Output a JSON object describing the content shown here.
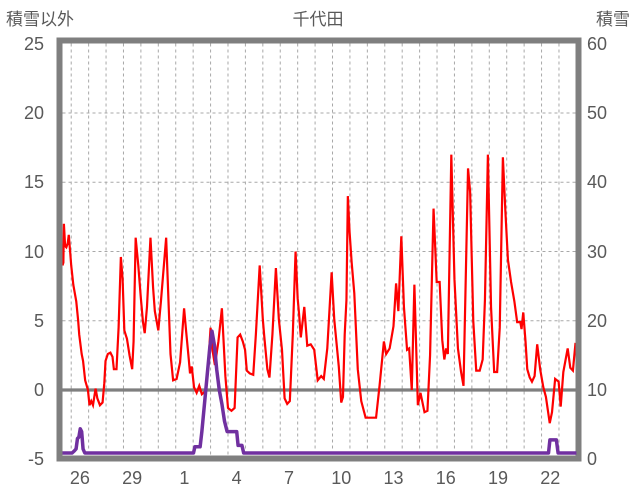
{
  "chart": {
    "title": "千代田",
    "left_axis_title": "積雪以外",
    "right_axis_title": "積雪",
    "colors": {
      "temperature_line": "#fe0000",
      "snow_line": "#7030a0",
      "border": "#7f7f7f",
      "zero_line": "#7f7f7f",
      "gridline": "#a8a8a8",
      "text": "#595959",
      "background": "#ffffff"
    }
  },
  "chart_data": {
    "type": "line",
    "title": "千代田",
    "x_axis": {
      "tick_labels": [
        "26",
        "29",
        "1",
        "4",
        "7",
        "10",
        "13",
        "16",
        "19",
        "22"
      ],
      "tick_positions_days": [
        1,
        4,
        7,
        10,
        13,
        16,
        19,
        22,
        25,
        28
      ],
      "domain_days": [
        0,
        29.5
      ],
      "gridlines_days": {
        "start": 0.5,
        "end": 28.5,
        "step": 1
      },
      "grid": "dashed-vertical-daily"
    },
    "y_axis_left": {
      "title": "積雪以外",
      "range": [
        -5,
        25
      ],
      "ticks": [
        25,
        20,
        15,
        10,
        5,
        0,
        -5
      ],
      "gridline_values": [
        20,
        15,
        10,
        5
      ],
      "zero_line_value": 0
    },
    "y_axis_right": {
      "title": "積雪",
      "range": [
        0,
        60
      ],
      "ticks": [
        60,
        50,
        40,
        30,
        20,
        10,
        0
      ]
    },
    "legend": "none",
    "series": [
      {
        "name": "積雪以外",
        "axis": "left",
        "color": "#fe0000",
        "points": [
          [
            0.0,
            9.0
          ],
          [
            0.05,
            9.2
          ],
          [
            0.08,
            12.0
          ],
          [
            0.15,
            10.4
          ],
          [
            0.22,
            10.3
          ],
          [
            0.3,
            10.6
          ],
          [
            0.36,
            11.2
          ],
          [
            0.45,
            9.8
          ],
          [
            0.5,
            9.0
          ],
          [
            0.62,
            7.6
          ],
          [
            0.79,
            6.4
          ],
          [
            0.9,
            5.0
          ],
          [
            0.96,
            4.0
          ],
          [
            1.1,
            2.6
          ],
          [
            1.18,
            2.1
          ],
          [
            1.3,
            0.7
          ],
          [
            1.46,
            0.0
          ],
          [
            1.55,
            -1.1
          ],
          [
            1.65,
            -0.8
          ],
          [
            1.75,
            -1.1
          ],
          [
            1.9,
            0.1
          ],
          [
            2.0,
            -0.6
          ],
          [
            2.15,
            -1.1
          ],
          [
            2.3,
            -0.9
          ],
          [
            2.4,
            0.5
          ],
          [
            2.47,
            2.1
          ],
          [
            2.6,
            2.6
          ],
          [
            2.75,
            2.7
          ],
          [
            2.87,
            2.4
          ],
          [
            2.95,
            1.5
          ],
          [
            3.1,
            1.5
          ],
          [
            3.22,
            4.5
          ],
          [
            3.35,
            9.6
          ],
          [
            3.45,
            8.0
          ],
          [
            3.55,
            4.3
          ],
          [
            3.7,
            3.7
          ],
          [
            3.85,
            2.5
          ],
          [
            4.0,
            1.5
          ],
          [
            4.08,
            3.5
          ],
          [
            4.2,
            11.0
          ],
          [
            4.35,
            9.0
          ],
          [
            4.5,
            6.6
          ],
          [
            4.62,
            4.9
          ],
          [
            4.72,
            4.1
          ],
          [
            4.85,
            6.0
          ],
          [
            5.05,
            11.0
          ],
          [
            5.2,
            7.4
          ],
          [
            5.3,
            5.7
          ],
          [
            5.5,
            4.3
          ],
          [
            5.65,
            6.4
          ],
          [
            5.95,
            11.0
          ],
          [
            6.1,
            5.9
          ],
          [
            6.2,
            2.6
          ],
          [
            6.35,
            0.7
          ],
          [
            6.55,
            0.8
          ],
          [
            6.75,
            2.0
          ],
          [
            6.98,
            5.9
          ],
          [
            7.1,
            4.2
          ],
          [
            7.25,
            2.2
          ],
          [
            7.32,
            1.2
          ],
          [
            7.42,
            1.7
          ],
          [
            7.55,
            0.2
          ],
          [
            7.7,
            -0.2
          ],
          [
            7.85,
            0.3
          ],
          [
            8.0,
            -0.3
          ],
          [
            8.2,
            -0.1
          ],
          [
            8.35,
            1.5
          ],
          [
            8.5,
            4.5
          ],
          [
            8.62,
            2.8
          ],
          [
            8.75,
            1.8
          ],
          [
            8.95,
            3.5
          ],
          [
            9.15,
            5.9
          ],
          [
            9.35,
            1.0
          ],
          [
            9.5,
            -1.3
          ],
          [
            9.7,
            -1.5
          ],
          [
            9.88,
            -1.3
          ],
          [
            10.05,
            3.8
          ],
          [
            10.2,
            4.0
          ],
          [
            10.35,
            3.5
          ],
          [
            10.48,
            2.9
          ],
          [
            10.58,
            1.4
          ],
          [
            10.75,
            1.2
          ],
          [
            10.95,
            1.1
          ],
          [
            11.1,
            4.0
          ],
          [
            11.32,
            9.0
          ],
          [
            11.5,
            5.1
          ],
          [
            11.58,
            3.9
          ],
          [
            11.76,
            1.5
          ],
          [
            11.88,
            0.9
          ],
          [
            12.05,
            4.0
          ],
          [
            12.25,
            8.8
          ],
          [
            12.42,
            5.1
          ],
          [
            12.6,
            2.9
          ],
          [
            12.75,
            -0.6
          ],
          [
            12.9,
            -1.0
          ],
          [
            13.05,
            -0.8
          ],
          [
            13.22,
            4.0
          ],
          [
            13.38,
            10.0
          ],
          [
            13.5,
            6.6
          ],
          [
            13.58,
            5.5
          ],
          [
            13.68,
            3.8
          ],
          [
            13.88,
            6.0
          ],
          [
            14.05,
            3.2
          ],
          [
            14.25,
            3.3
          ],
          [
            14.45,
            2.9
          ],
          [
            14.65,
            0.7
          ],
          [
            14.85,
            1.0
          ],
          [
            15.0,
            0.8
          ],
          [
            15.2,
            3.0
          ],
          [
            15.45,
            8.5
          ],
          [
            15.6,
            5.1
          ],
          [
            15.86,
            1.7
          ],
          [
            16.0,
            -0.9
          ],
          [
            16.1,
            -0.5
          ],
          [
            16.2,
            4.0
          ],
          [
            16.3,
            6.5
          ],
          [
            16.38,
            14.0
          ],
          [
            16.48,
            11.4
          ],
          [
            16.6,
            9.2
          ],
          [
            16.75,
            7.0
          ],
          [
            16.95,
            1.5
          ],
          [
            17.15,
            -0.8
          ],
          [
            17.4,
            -2.0
          ],
          [
            17.7,
            -2.0
          ],
          [
            18.0,
            -2.0
          ],
          [
            18.2,
            0.3
          ],
          [
            18.45,
            3.5
          ],
          [
            18.58,
            2.6
          ],
          [
            18.78,
            3.0
          ],
          [
            19.0,
            4.6
          ],
          [
            19.15,
            7.7
          ],
          [
            19.28,
            5.7
          ],
          [
            19.45,
            11.1
          ],
          [
            19.6,
            6.0
          ],
          [
            19.78,
            2.9
          ],
          [
            19.9,
            3.0
          ],
          [
            20.05,
            0.0
          ],
          [
            20.2,
            7.6
          ],
          [
            20.4,
            -1.1
          ],
          [
            20.55,
            -0.2
          ],
          [
            20.78,
            -1.6
          ],
          [
            20.95,
            -1.5
          ],
          [
            21.1,
            2.5
          ],
          [
            21.3,
            13.1
          ],
          [
            21.48,
            7.8
          ],
          [
            21.65,
            7.8
          ],
          [
            21.8,
            3.6
          ],
          [
            21.92,
            2.2
          ],
          [
            22.02,
            3.0
          ],
          [
            22.12,
            2.6
          ],
          [
            22.32,
            17.0
          ],
          [
            22.5,
            8.0
          ],
          [
            22.7,
            3.0
          ],
          [
            22.88,
            1.3
          ],
          [
            23.02,
            0.3
          ],
          [
            23.28,
            16.0
          ],
          [
            23.4,
            14.3
          ],
          [
            23.58,
            5.0
          ],
          [
            23.75,
            1.4
          ],
          [
            23.95,
            1.4
          ],
          [
            24.12,
            2.2
          ],
          [
            24.25,
            6.5
          ],
          [
            24.42,
            17.0
          ],
          [
            24.6,
            6.0
          ],
          [
            24.78,
            1.3
          ],
          [
            24.95,
            1.3
          ],
          [
            25.1,
            4.5
          ],
          [
            25.28,
            16.8
          ],
          [
            25.42,
            13.0
          ],
          [
            25.57,
            9.4
          ],
          [
            25.75,
            7.8
          ],
          [
            25.94,
            6.4
          ],
          [
            26.1,
            4.9
          ],
          [
            26.28,
            4.9
          ],
          [
            26.35,
            4.4
          ],
          [
            26.45,
            5.6
          ],
          [
            26.58,
            3.5
          ],
          [
            26.68,
            1.5
          ],
          [
            26.82,
            0.9
          ],
          [
            26.95,
            0.6
          ],
          [
            27.1,
            1.0
          ],
          [
            27.25,
            3.3
          ],
          [
            27.42,
            1.5
          ],
          [
            27.6,
            0.2
          ],
          [
            27.75,
            -0.5
          ],
          [
            27.97,
            -2.4
          ],
          [
            28.1,
            -1.6
          ],
          [
            28.28,
            0.8
          ],
          [
            28.48,
            0.6
          ],
          [
            28.6,
            -1.2
          ],
          [
            28.75,
            1.3
          ],
          [
            29.0,
            3.0
          ],
          [
            29.15,
            1.6
          ],
          [
            29.3,
            1.4
          ],
          [
            29.45,
            3.4
          ]
        ]
      },
      {
        "name": "積雪",
        "axis": "right",
        "color": "#7030a0",
        "points": [
          [
            0.0,
            0
          ],
          [
            0.55,
            0
          ],
          [
            0.68,
            1.2
          ],
          [
            0.78,
            1.5
          ],
          [
            0.86,
            3.0
          ],
          [
            0.94,
            3.2
          ],
          [
            1.02,
            4.4
          ],
          [
            1.1,
            4.0
          ],
          [
            1.18,
            1.5
          ],
          [
            1.28,
            0
          ],
          [
            7.52,
            0
          ],
          [
            7.6,
            1.8
          ],
          [
            7.9,
            1.8
          ],
          [
            8.0,
            4.0
          ],
          [
            8.15,
            8.0
          ],
          [
            8.3,
            12.0
          ],
          [
            8.45,
            16.0
          ],
          [
            8.58,
            18.5
          ],
          [
            8.72,
            16.5
          ],
          [
            8.85,
            13.0
          ],
          [
            9.0,
            10.0
          ],
          [
            9.15,
            8.0
          ],
          [
            9.3,
            5.5
          ],
          [
            9.45,
            4.0
          ],
          [
            10.0,
            4.0
          ],
          [
            10.08,
            2.0
          ],
          [
            10.3,
            2.0
          ],
          [
            10.4,
            0
          ],
          [
            27.9,
            0
          ],
          [
            27.98,
            2.8
          ],
          [
            28.35,
            2.8
          ],
          [
            28.45,
            0
          ],
          [
            29.5,
            0
          ]
        ]
      }
    ]
  }
}
